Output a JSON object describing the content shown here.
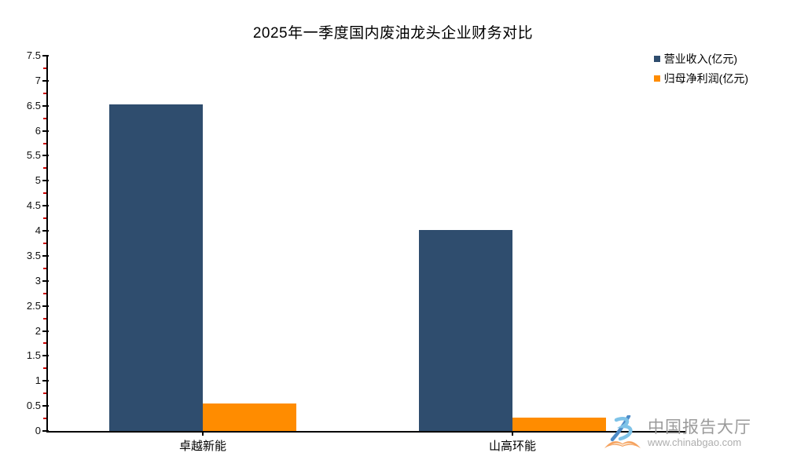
{
  "chart_data": {
    "type": "bar",
    "title": "2025年一季度国内废油龙头企业财务对比",
    "categories": [
      "卓越新能",
      "山高环能"
    ],
    "series": [
      {
        "name": "营业收入(亿元)",
        "color": "#2F4D6E",
        "values": [
          6.53,
          4.01
        ]
      },
      {
        "name": "归母净利润(亿元)",
        "color": "#FF8C00",
        "values": [
          0.55,
          0.26
        ]
      }
    ],
    "xlabel": "",
    "ylabel": "",
    "ylim": [
      0,
      7.5
    ],
    "y_major_step": 0.5,
    "y_minor_step": 0.25,
    "y_tick_labels": [
      "0",
      "0.5",
      "1",
      "1.5",
      "2",
      "2.5",
      "3",
      "3.5",
      "4",
      "4.5",
      "5",
      "5.5",
      "6",
      "6.5",
      "7",
      "7.5"
    ],
    "grid": false,
    "legend_position": "top-right",
    "axis_color": "#000000",
    "minor_tick_color": "#CC0000"
  },
  "watermark": {
    "brand": "中国报告大厅",
    "url": "www.chinabgao.com",
    "logo_blue_light": "#7FC3E8",
    "logo_blue_dark": "#4E8CC9",
    "logo_orange": "#F5A25E"
  }
}
